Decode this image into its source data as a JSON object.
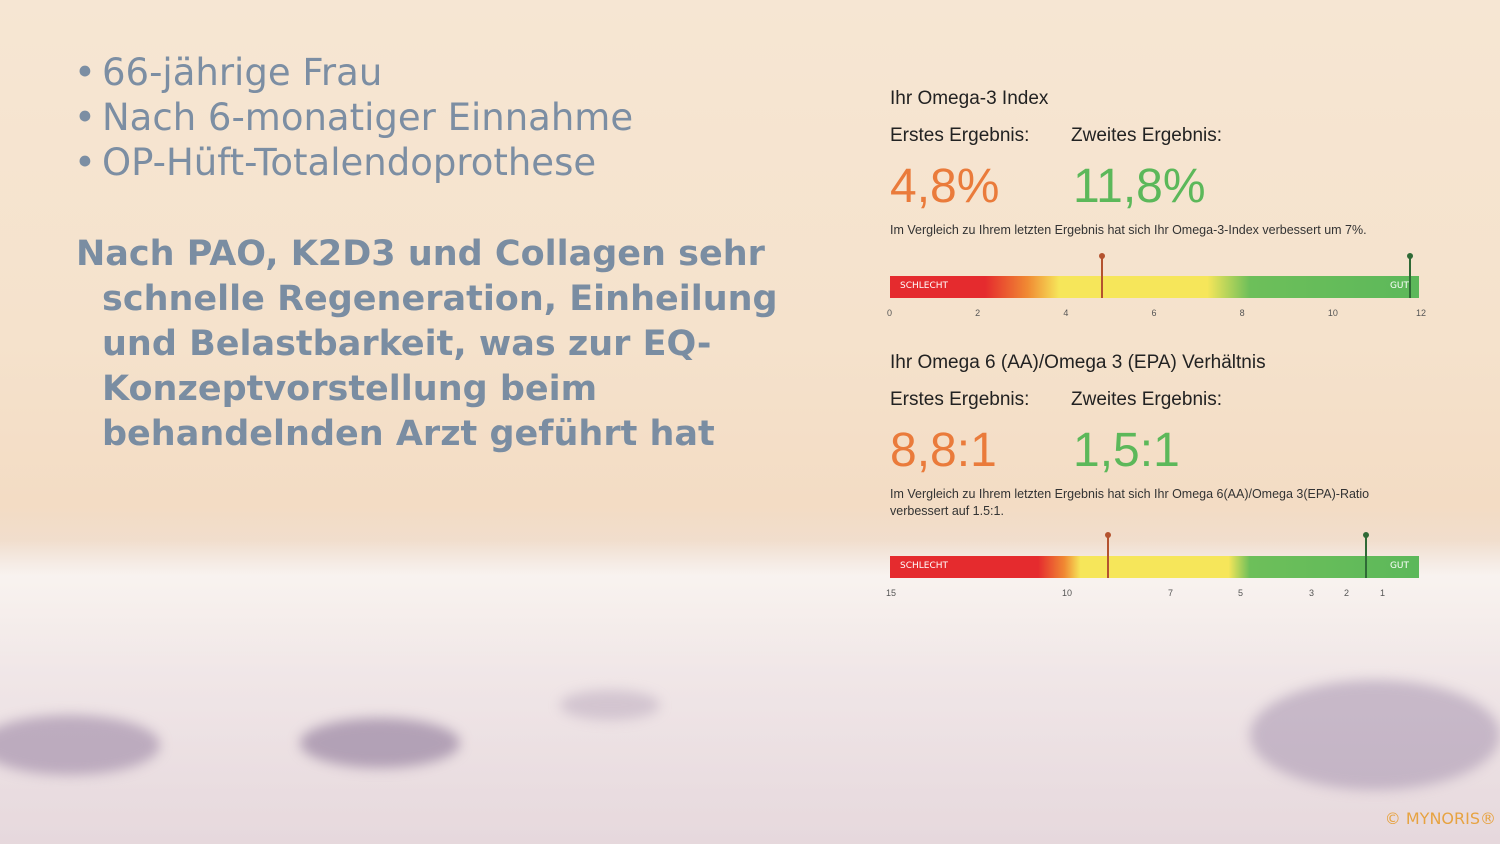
{
  "bullets": [
    "66-jährige Frau",
    "Nach 6-monatiger Einnahme",
    "OP-Hüft-Totalendoprothese"
  ],
  "paragraph": "Nach PAO, K2D3 und Collagen sehr schnelle Regeneration, Einheilung und Belastbarkeit, was zur EQ-Konzeptvorstellung beim behandelnden Arzt geführt hat",
  "bullet_symbol": "•",
  "omega3": {
    "title": "Ihr Omega-3 Index",
    "first_label": "Erstes Ergebnis:",
    "second_label": "Zweites Ergebnis:",
    "first_value": "4,8%",
    "second_value": "11,8%",
    "note": "Im Vergleich zu Ihrem letzten Ergebnis hat sich Ihr Omega-3-Index verbessert um 7%.",
    "bar_left": "SCHLECHT",
    "bar_right": "GUT",
    "ticks": [
      "0",
      "2",
      "4",
      "6",
      "8",
      "10",
      "12"
    ],
    "first_marker": 4.8,
    "second_marker": 11.8,
    "scale_min": 0,
    "scale_max": 12
  },
  "ratio": {
    "title": "Ihr Omega 6 (AA)/Omega 3 (EPA) Verhältnis",
    "first_label": "Erstes Ergebnis:",
    "second_label": "Zweites Ergebnis:",
    "first_value": "8,8:1",
    "second_value": "1,5:1",
    "note": "Im Vergleich zu Ihrem letzten Ergebnis hat sich Ihr Omega 6(AA)/Omega 3(EPA)-Ratio verbessert auf 1.5:1.",
    "bar_left": "SCHLECHT",
    "bar_right": "GUT",
    "ticks": [
      "15",
      "10",
      "7",
      "5",
      "3",
      "2",
      "1"
    ],
    "first_marker": 8.8,
    "second_marker": 1.5
  },
  "colors": {
    "orange": "#ea7b3b",
    "green": "#5cb85a",
    "red": "#e52b2e",
    "yellow": "#f6e65a",
    "text_blue": "#7a8da2"
  },
  "copyright": "© MYNORIS®"
}
